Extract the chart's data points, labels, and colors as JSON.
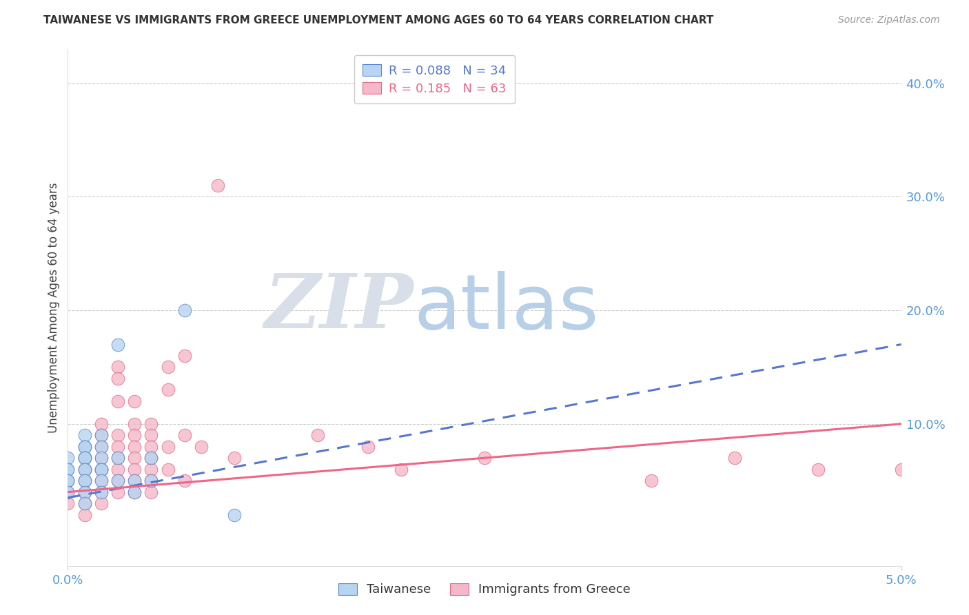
{
  "title": "TAIWANESE VS IMMIGRANTS FROM GREECE UNEMPLOYMENT AMONG AGES 60 TO 64 YEARS CORRELATION CHART",
  "source": "Source: ZipAtlas.com",
  "ylabel": "Unemployment Among Ages 60 to 64 years",
  "right_yticks": [
    "40.0%",
    "30.0%",
    "20.0%",
    "10.0%"
  ],
  "right_ytick_vals": [
    0.4,
    0.3,
    0.2,
    0.1
  ],
  "xlim": [
    0.0,
    0.05
  ],
  "ylim": [
    -0.025,
    0.43
  ],
  "taiwan_color": "#b8d4f0",
  "taiwan_edge_color": "#5588cc",
  "greece_color": "#f5b8c8",
  "greece_edge_color": "#dd6688",
  "taiwan_line_color": "#5577cc",
  "greece_line_color": "#ee6688",
  "legend_taiwan_R": "0.088",
  "legend_taiwan_N": "34",
  "legend_greece_R": "0.185",
  "legend_greece_N": "63",
  "grid_color": "#cccccc",
  "background_color": "#ffffff",
  "title_color": "#333333",
  "axis_label_color": "#444444",
  "right_tick_color": "#5599dd",
  "bottom_tick_color": "#5599dd",
  "taiwan_x": [
    0.0,
    0.0,
    0.0,
    0.0,
    0.0,
    0.0,
    0.001,
    0.001,
    0.001,
    0.001,
    0.001,
    0.001,
    0.001,
    0.001,
    0.001,
    0.001,
    0.001,
    0.001,
    0.002,
    0.002,
    0.002,
    0.002,
    0.002,
    0.002,
    0.002,
    0.003,
    0.003,
    0.003,
    0.004,
    0.004,
    0.005,
    0.005,
    0.007,
    0.01
  ],
  "taiwan_y": [
    0.07,
    0.06,
    0.06,
    0.05,
    0.05,
    0.04,
    0.09,
    0.08,
    0.08,
    0.07,
    0.07,
    0.07,
    0.06,
    0.06,
    0.05,
    0.05,
    0.04,
    0.03,
    0.09,
    0.08,
    0.07,
    0.06,
    0.06,
    0.05,
    0.04,
    0.17,
    0.07,
    0.05,
    0.05,
    0.04,
    0.07,
    0.05,
    0.2,
    0.02
  ],
  "greece_x": [
    0.0,
    0.0,
    0.0,
    0.001,
    0.001,
    0.001,
    0.001,
    0.001,
    0.001,
    0.001,
    0.001,
    0.001,
    0.002,
    0.002,
    0.002,
    0.002,
    0.002,
    0.002,
    0.002,
    0.002,
    0.002,
    0.003,
    0.003,
    0.003,
    0.003,
    0.003,
    0.003,
    0.003,
    0.003,
    0.003,
    0.004,
    0.004,
    0.004,
    0.004,
    0.004,
    0.004,
    0.004,
    0.004,
    0.005,
    0.005,
    0.005,
    0.005,
    0.005,
    0.005,
    0.005,
    0.006,
    0.006,
    0.006,
    0.006,
    0.007,
    0.007,
    0.007,
    0.008,
    0.009,
    0.01,
    0.015,
    0.018,
    0.02,
    0.025,
    0.035,
    0.04,
    0.045,
    0.05
  ],
  "greece_y": [
    0.05,
    0.04,
    0.03,
    0.08,
    0.07,
    0.07,
    0.06,
    0.06,
    0.05,
    0.04,
    0.03,
    0.02,
    0.1,
    0.09,
    0.08,
    0.07,
    0.06,
    0.06,
    0.05,
    0.04,
    0.03,
    0.15,
    0.14,
    0.12,
    0.09,
    0.08,
    0.07,
    0.06,
    0.05,
    0.04,
    0.12,
    0.1,
    0.09,
    0.08,
    0.07,
    0.06,
    0.05,
    0.04,
    0.1,
    0.09,
    0.08,
    0.07,
    0.06,
    0.05,
    0.04,
    0.15,
    0.13,
    0.08,
    0.06,
    0.16,
    0.09,
    0.05,
    0.08,
    0.31,
    0.07,
    0.09,
    0.08,
    0.06,
    0.07,
    0.05,
    0.07,
    0.06,
    0.06
  ],
  "tw_trend_x0": 0.0,
  "tw_trend_y0": 0.035,
  "tw_trend_x1": 0.05,
  "tw_trend_y1": 0.17,
  "gr_trend_x0": 0.0,
  "gr_trend_y0": 0.04,
  "gr_trend_x1": 0.05,
  "gr_trend_y1": 0.1
}
